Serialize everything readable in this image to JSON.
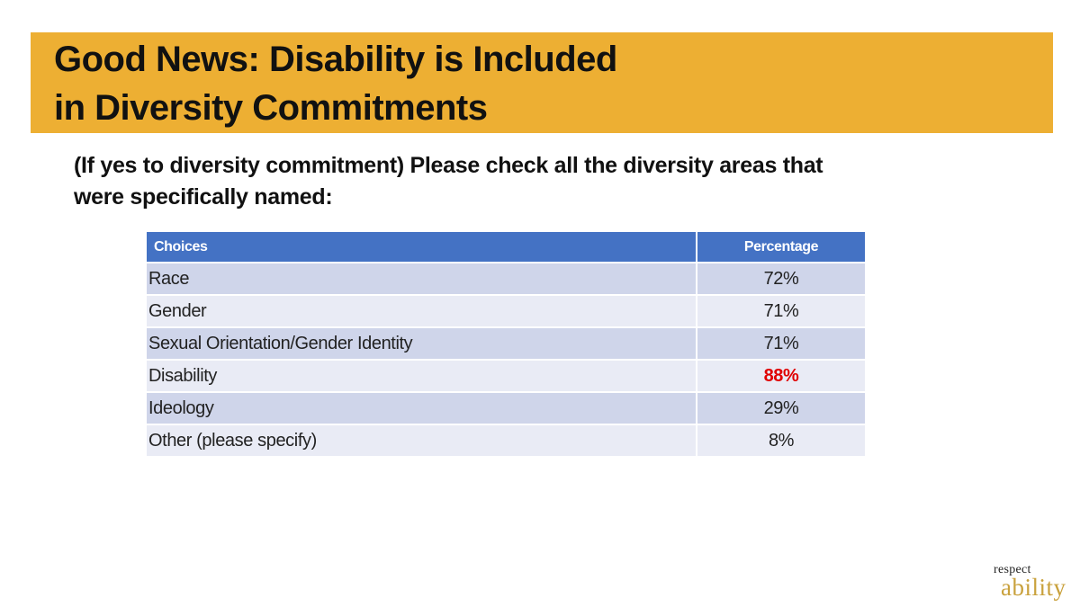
{
  "slide": {
    "title_line1": "Good News: Disability is Included",
    "title_line2": "in Diversity Commitments",
    "question_line1": "(If yes to diversity commitment) Please check all the diversity areas that",
    "question_line2": "were specifically named:"
  },
  "table": {
    "headers": [
      "Choices",
      "Percentage"
    ],
    "rows": [
      {
        "choice": "Race",
        "percentage": "72%"
      },
      {
        "choice": "Gender",
        "percentage": "71%"
      },
      {
        "choice": "Sexual Orientation/Gender Identity",
        "percentage": "71%"
      },
      {
        "choice": "Disability",
        "percentage": "88%"
      },
      {
        "choice": "Ideology",
        "percentage": "29%"
      },
      {
        "choice": "Other (please specify)",
        "percentage": "8%"
      }
    ]
  },
  "colors": {
    "title_band": "#EDAF33",
    "header_fill": "#4472C4",
    "row_odd": "#CFD5EA",
    "row_even": "#E9EBF5",
    "highlight": "#E00000",
    "logo_gold": "#C9A13C"
  },
  "logo": {
    "word1": "respect",
    "word2": "ability"
  }
}
